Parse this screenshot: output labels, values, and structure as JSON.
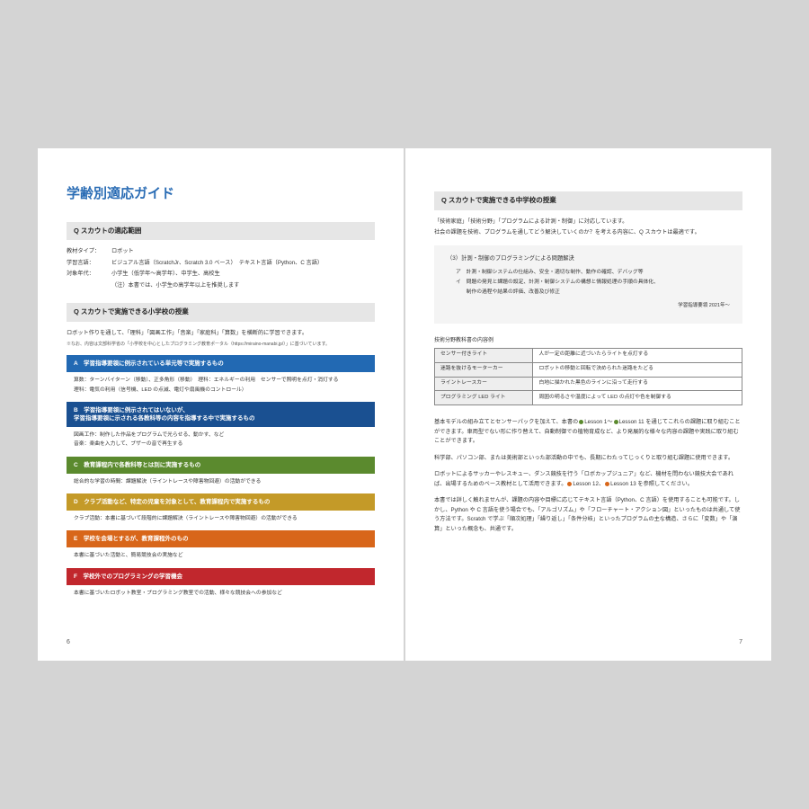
{
  "left": {
    "title": "学齢別適応ガイド",
    "section1": {
      "header": "Q スカウトの適応範囲",
      "rows": [
        {
          "label": "教材タイプ：",
          "value": "ロボット"
        },
        {
          "label": "学習言語：",
          "value": "ビジュアル言語（ScratchJr、Scratch 3.0 ベース）　テキスト言語（Python、C 言語）"
        },
        {
          "label": "対象年代：",
          "value": "小学生（低学年〜高学年）、中学生、高校生"
        },
        {
          "label": "",
          "value": "（注）本書では、小学生の高学年以上を推奨します"
        }
      ]
    },
    "section2": {
      "header": "Q スカウトで実施できる小学校の授業",
      "intro": "ロボット作りを通して、「理科」「図画工作」「音楽」「家庭科」「算数」を横断的に学習できます。",
      "footnote": "※なお、内容は文部科学省の「小学校を中心としたプログラミング教育ポータル（https://miraino-manabi.jp/）」に基づいています。"
    },
    "categories": [
      {
        "letter": "A",
        "color": "#2269b3",
        "title": "学習指導要領に例示されている単元等で実施するもの",
        "body": [
          "算数：ターンバイターン（移動）、正多角形（移動）　理科：エネルギーの利用　センサーで照明を点灯・消灯する",
          "理科：電気の利用（信号機、LED の点滅、電灯や扇風機のコントロール）"
        ]
      },
      {
        "letter": "B",
        "color": "#1a5091",
        "title": "学習指導要領に例示されてはいないが、\n学習指導要領に示される各教科等の内容を指導する中で実施するもの",
        "body": [
          "図画工作：制作した作品をプログラムで光らせる、動かす、など",
          "音楽：楽曲を入力して、ブザーの音で再生する"
        ]
      },
      {
        "letter": "C",
        "color": "#5b8a2e",
        "title": "教育課程内で各教科等とは別に実施するもの",
        "body": [
          "総合的な学習の時間：課題解決（ライントレースや障害物回避）の活動ができる"
        ]
      },
      {
        "letter": "D",
        "color": "#c49a28",
        "title": "クラブ活動など、特定の児童を対象として、教育課程内で実施するもの",
        "body": [
          "クラブ活動：本書に基づいて段階的に課題解決（ライントレースや障害物回避）の活動ができる"
        ]
      },
      {
        "letter": "E",
        "color": "#d8661a",
        "title": "学校を会場とするが、教育課程外のもの",
        "body": [
          "本書に基づいた活動と、簡易競技会の実施など"
        ]
      },
      {
        "letter": "F",
        "color": "#c1272d",
        "title": "学校外でのプログラミングの学習機会",
        "body": [
          "本書に基づいたロボット教室・プログラミング教室での活動、様々な競技会への参加など"
        ]
      }
    ],
    "pageNum": "6"
  },
  "right": {
    "section": {
      "header": "Q スカウトで実施できる中学校の授業",
      "intro1": "「技術家庭」「技術分野」「プログラムによる計測・制御」に対応しています。",
      "intro2": "社会の課題を技術、プログラムを通してどう解決していくのか？を考える内容に、Q スカウトは最適です。"
    },
    "quote": {
      "title": "（3）計測・制御のプログラミングによる問題解決",
      "items": [
        "ア　計測・制御システムの仕組み、安全・適切な制作、動作の確認、デバッグ等",
        "イ　問題の発見と課題の設定、計測・制御システムの構想と情報処理の手順の具体化、",
        "　　制作の過程や結果の評価、改善及び修正"
      ],
      "cite": "学習指導要領 2021年〜"
    },
    "tableTitle": "技術分野教科書の内容例",
    "table": [
      {
        "c1": "センサー付きライト",
        "c2": "人が一定の距離に近づいたらライトを点灯する"
      },
      {
        "c1": "迷路を抜けるモーターカー",
        "c2": "ロボットの移動と回転で決められた迷路をたどる"
      },
      {
        "c1": "ライントレースカー",
        "c2": "白地に描かれた黒色のラインに沿って走行する"
      },
      {
        "c1": "プログラミング LED ライト",
        "c2": "周囲の明るさや温度によって LED の点灯や色を制御する"
      }
    ],
    "paras": [
      "基本モデルの組み立てとセンサーパックを加えて、本書の●Lesson 1〜●Lesson 11 を通じてこれらの課題に取り組むことができます。車両型でない形に作り替えて、自動制御での植物育成など、より発展的な様々な内容の課題や実践に取り組むことができます。",
      "科学部、パソコン部、または美術部といった部活動の中でも、長期にわたってじっくりと取り組む課題に使用できます。",
      "ロボットによるサッカーやレスキュー、ダンス競技を行う「ロボカップジュニア」など、機材を問わない競技大会であれば、出場するためのベース教材として活用できます。●Lesson 12、●Lesson 13 を参照してください。",
      "本書では詳しく触れませんが、課題の内容や目標に応じてテキスト言語（Python、C 言語）を使用することも可能です。しかし、Python や C 言語を使う場合でも、「アルゴリズム」や「フローチャート・アクション図」といったものは共通して使う方法です。Scratch で学ぶ「順次処理」「繰り返し」「条件分岐」といったプログラムの主な構造、さらに「変数」や「演算」といった概念も、共通です。"
    ],
    "pageNum": "7",
    "dotColors": {
      "green": "#5b8a2e",
      "orange": "#d8661a"
    }
  }
}
